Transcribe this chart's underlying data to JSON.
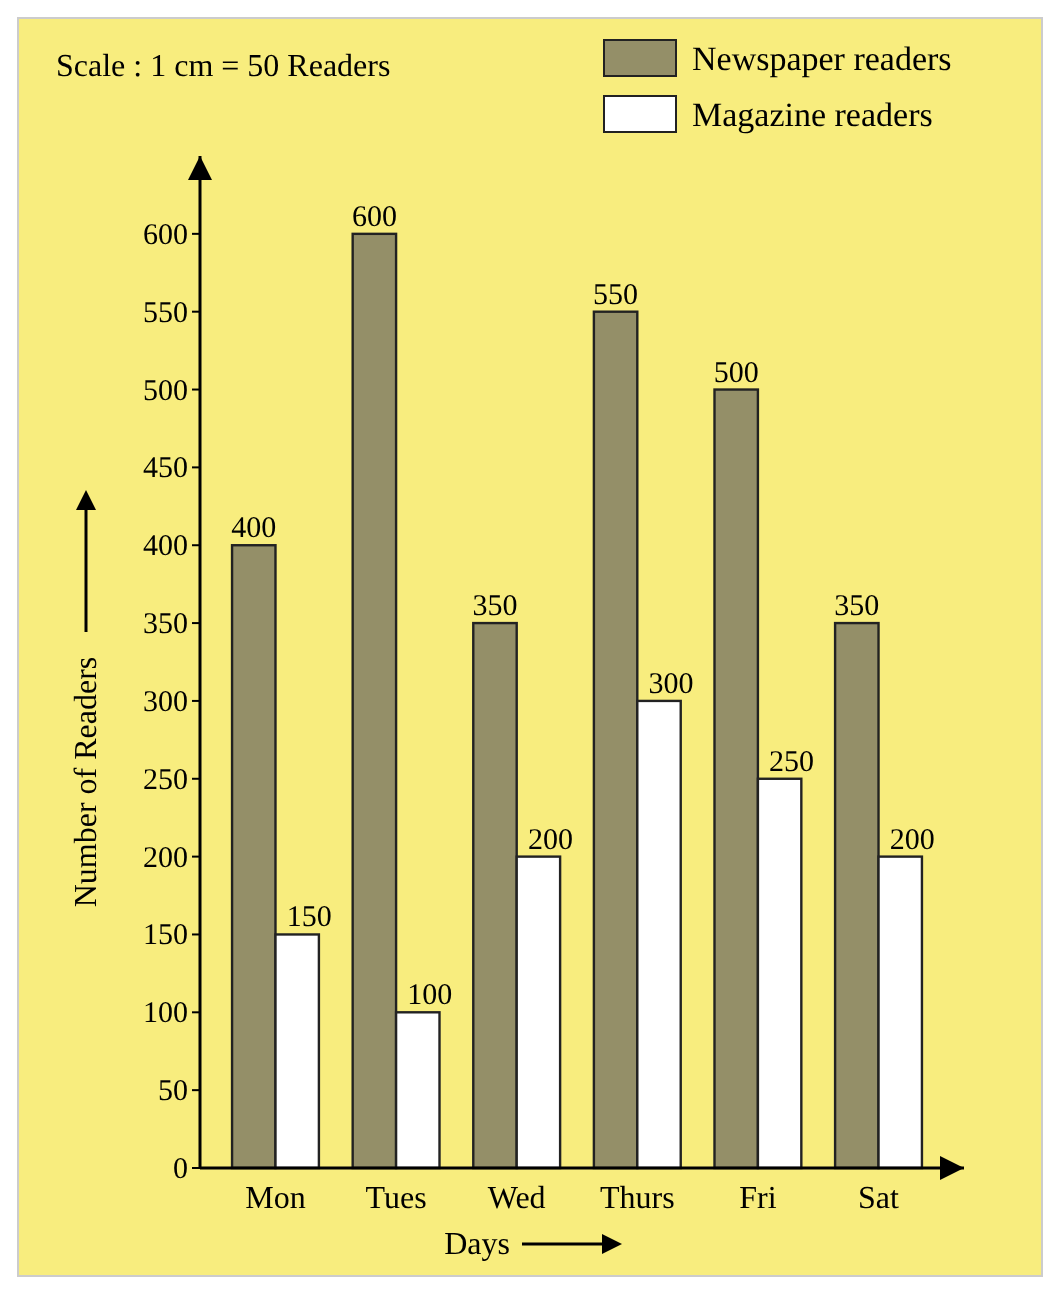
{
  "chart_data": {
    "type": "bar",
    "xlabel": "Days",
    "ylabel": "Number of Readers",
    "annotations": [
      "Scale : 1 cm = 50 Readers"
    ],
    "categories": [
      "Mon",
      "Tues",
      "Wed",
      "Thurs",
      "Fri",
      "Sat"
    ],
    "series": [
      {
        "name": "Newspaper readers",
        "color": "#948f68",
        "values": [
          400,
          600,
          350,
          550,
          500,
          350
        ]
      },
      {
        "name": "Magazine readers",
        "color": "#ffffff",
        "values": [
          150,
          100,
          200,
          300,
          250,
          200
        ]
      }
    ],
    "ylim": [
      0,
      650
    ],
    "yticks": [
      0,
      50,
      100,
      150,
      200,
      250,
      300,
      350,
      400,
      450,
      500,
      550,
      600
    ],
    "data_labels": true,
    "legend": "top right",
    "grid": false
  }
}
